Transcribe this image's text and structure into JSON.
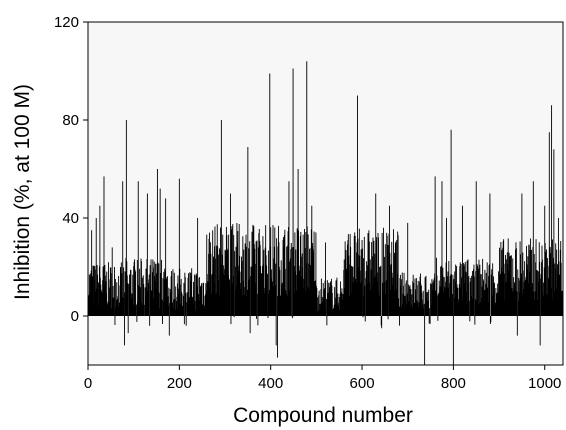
{
  "chart_data": {
    "type": "bar",
    "title": "",
    "xlabel": "Compound number",
    "ylabel": "Inhibition (%, at 100 M)",
    "xlim": [
      0,
      1040
    ],
    "ylim": [
      -20,
      120
    ],
    "xticks": [
      0,
      200,
      400,
      600,
      800,
      1000
    ],
    "yticks": [
      0,
      40,
      80,
      120
    ],
    "grid": false,
    "legend": "none",
    "n_points": 1040,
    "bar_color": "#000000",
    "background_color": "#f7f7f7",
    "segments": [
      {
        "x_start": 1,
        "x_end": 80,
        "typical_range": [
          3,
          22
        ]
      },
      {
        "x_start": 80,
        "x_end": 180,
        "typical_range": [
          3,
          24
        ]
      },
      {
        "x_start": 180,
        "x_end": 260,
        "typical_range": [
          2,
          20
        ]
      },
      {
        "x_start": 260,
        "x_end": 500,
        "typical_range": [
          8,
          38
        ]
      },
      {
        "x_start": 500,
        "x_end": 560,
        "typical_range": [
          2,
          16
        ]
      },
      {
        "x_start": 560,
        "x_end": 680,
        "typical_range": [
          8,
          36
        ]
      },
      {
        "x_start": 680,
        "x_end": 760,
        "typical_range": [
          2,
          18
        ]
      },
      {
        "x_start": 760,
        "x_end": 900,
        "typical_range": [
          4,
          24
        ]
      },
      {
        "x_start": 900,
        "x_end": 1040,
        "typical_range": [
          6,
          32
        ]
      }
    ],
    "notable_values": [
      {
        "x": 8,
        "y": 35
      },
      {
        "x": 18,
        "y": 40
      },
      {
        "x": 26,
        "y": 45
      },
      {
        "x": 35,
        "y": 57
      },
      {
        "x": 53,
        "y": 28
      },
      {
        "x": 76,
        "y": 55
      },
      {
        "x": 80,
        "y": -12
      },
      {
        "x": 84,
        "y": 80
      },
      {
        "x": 88,
        "y": -7
      },
      {
        "x": 110,
        "y": 55
      },
      {
        "x": 130,
        "y": 50
      },
      {
        "x": 135,
        "y": -4
      },
      {
        "x": 152,
        "y": 60
      },
      {
        "x": 158,
        "y": 52
      },
      {
        "x": 170,
        "y": 48
      },
      {
        "x": 178,
        "y": -8
      },
      {
        "x": 200,
        "y": 56
      },
      {
        "x": 240,
        "y": 40
      },
      {
        "x": 292,
        "y": 80
      },
      {
        "x": 312,
        "y": 50
      },
      {
        "x": 350,
        "y": 69
      },
      {
        "x": 355,
        "y": -7
      },
      {
        "x": 398,
        "y": 99
      },
      {
        "x": 412,
        "y": -12
      },
      {
        "x": 415,
        "y": -17
      },
      {
        "x": 440,
        "y": 55
      },
      {
        "x": 449,
        "y": 101
      },
      {
        "x": 460,
        "y": 60
      },
      {
        "x": 479,
        "y": 104
      },
      {
        "x": 490,
        "y": 45
      },
      {
        "x": 520,
        "y": 30
      },
      {
        "x": 590,
        "y": 90
      },
      {
        "x": 630,
        "y": 50
      },
      {
        "x": 643,
        "y": -5
      },
      {
        "x": 660,
        "y": 45
      },
      {
        "x": 700,
        "y": 38
      },
      {
        "x": 737,
        "y": -28
      },
      {
        "x": 760,
        "y": 57
      },
      {
        "x": 775,
        "y": 55
      },
      {
        "x": 785,
        "y": 40
      },
      {
        "x": 795,
        "y": 76
      },
      {
        "x": 800,
        "y": -28
      },
      {
        "x": 820,
        "y": 45
      },
      {
        "x": 850,
        "y": 55
      },
      {
        "x": 880,
        "y": 50
      },
      {
        "x": 940,
        "y": -8
      },
      {
        "x": 950,
        "y": 50
      },
      {
        "x": 975,
        "y": 55
      },
      {
        "x": 990,
        "y": -12
      },
      {
        "x": 1000,
        "y": 45
      },
      {
        "x": 1010,
        "y": 75
      },
      {
        "x": 1015,
        "y": 86
      },
      {
        "x": 1020,
        "y": 68
      },
      {
        "x": 1030,
        "y": 40
      }
    ]
  }
}
